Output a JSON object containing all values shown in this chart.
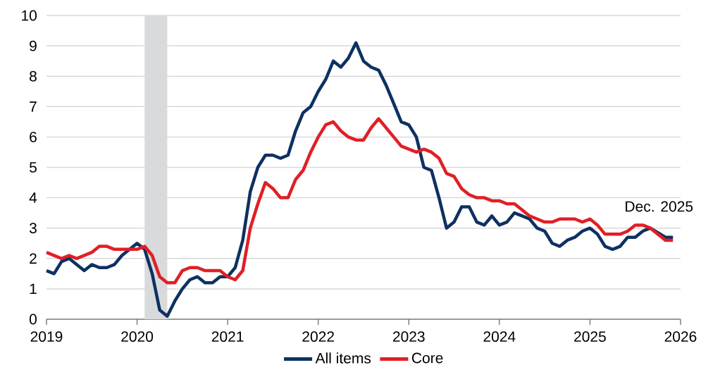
{
  "chart_data": {
    "type": "line",
    "x": [
      "2019-01",
      "2019-02",
      "2019-03",
      "2019-04",
      "2019-05",
      "2019-06",
      "2019-07",
      "2019-08",
      "2019-09",
      "2019-10",
      "2019-11",
      "2019-12",
      "2020-01",
      "2020-02",
      "2020-03",
      "2020-04",
      "2020-05",
      "2020-06",
      "2020-07",
      "2020-08",
      "2020-09",
      "2020-10",
      "2020-11",
      "2020-12",
      "2021-01",
      "2021-02",
      "2021-03",
      "2021-04",
      "2021-05",
      "2021-06",
      "2021-07",
      "2021-08",
      "2021-09",
      "2021-10",
      "2021-11",
      "2021-12",
      "2022-01",
      "2022-02",
      "2022-03",
      "2022-04",
      "2022-05",
      "2022-06",
      "2022-07",
      "2022-08",
      "2022-09",
      "2022-10",
      "2022-11",
      "2022-12",
      "2023-01",
      "2023-02",
      "2023-03",
      "2023-04",
      "2023-05",
      "2023-06",
      "2023-07",
      "2023-08",
      "2023-09",
      "2023-10",
      "2023-11",
      "2023-12",
      "2024-01",
      "2024-02",
      "2024-03",
      "2024-04",
      "2024-05",
      "2024-06",
      "2024-07",
      "2024-08",
      "2024-09",
      "2024-10",
      "2024-11",
      "2024-12",
      "2025-01",
      "2025-02",
      "2025-03",
      "2025-04",
      "2025-05",
      "2025-06",
      "2025-07",
      "2025-08",
      "2025-09",
      "2025-11",
      "2025-12"
    ],
    "series": [
      {
        "name": "All items",
        "color": "#0d3161",
        "values": [
          1.6,
          1.5,
          1.9,
          2.0,
          1.8,
          1.6,
          1.8,
          1.7,
          1.7,
          1.8,
          2.1,
          2.3,
          2.5,
          2.3,
          1.5,
          0.3,
          0.1,
          0.6,
          1.0,
          1.3,
          1.4,
          1.2,
          1.2,
          1.4,
          1.4,
          1.7,
          2.6,
          4.2,
          5.0,
          5.4,
          5.4,
          5.3,
          5.4,
          6.2,
          6.8,
          7.0,
          7.5,
          7.9,
          8.5,
          8.3,
          8.6,
          9.1,
          8.5,
          8.3,
          8.2,
          7.7,
          7.1,
          6.5,
          6.4,
          6.0,
          5.0,
          4.9,
          4.0,
          3.0,
          3.2,
          3.7,
          3.7,
          3.2,
          3.1,
          3.4,
          3.1,
          3.2,
          3.5,
          3.4,
          3.3,
          3.0,
          2.9,
          2.5,
          2.4,
          2.6,
          2.7,
          2.9,
          3.0,
          2.8,
          2.4,
          2.3,
          2.4,
          2.7,
          2.7,
          2.9,
          3.0,
          2.7,
          2.7
        ]
      },
      {
        "name": "Core",
        "color": "#e01f26",
        "values": [
          2.2,
          2.1,
          2.0,
          2.1,
          2.0,
          2.1,
          2.2,
          2.4,
          2.4,
          2.3,
          2.3,
          2.3,
          2.3,
          2.4,
          2.1,
          1.4,
          1.2,
          1.2,
          1.6,
          1.7,
          1.7,
          1.6,
          1.6,
          1.6,
          1.4,
          1.3,
          1.6,
          3.0,
          3.8,
          4.5,
          4.3,
          4.0,
          4.0,
          4.6,
          4.9,
          5.5,
          6.0,
          6.4,
          6.5,
          6.2,
          6.0,
          5.9,
          5.9,
          6.3,
          6.6,
          6.3,
          6.0,
          5.7,
          5.6,
          5.5,
          5.6,
          5.5,
          5.3,
          4.8,
          4.7,
          4.3,
          4.1,
          4.0,
          4.0,
          3.9,
          3.9,
          3.8,
          3.8,
          3.6,
          3.4,
          3.3,
          3.2,
          3.2,
          3.3,
          3.3,
          3.3,
          3.2,
          3.3,
          3.1,
          2.8,
          2.8,
          2.8,
          2.9,
          3.1,
          3.1,
          3.0,
          2.6,
          2.6
        ]
      }
    ],
    "xlim": [
      "2019",
      "2026"
    ],
    "xticks": [
      "2019",
      "2020",
      "2021",
      "2022",
      "2023",
      "2024",
      "2025",
      "2026"
    ],
    "ylim": [
      0,
      10
    ],
    "yticks": [
      0,
      1,
      2,
      3,
      4,
      5,
      6,
      7,
      8,
      9,
      10
    ],
    "bands": [
      {
        "axis": "x",
        "from": "2020-02",
        "to": "2020-05",
        "color": "#d9dadc"
      }
    ],
    "annotations": [
      {
        "text": "Dec. 2025",
        "x": "2025-12",
        "y": 2.7
      }
    ],
    "grid": "y",
    "legend": "bottom",
    "line_style": "solid"
  }
}
